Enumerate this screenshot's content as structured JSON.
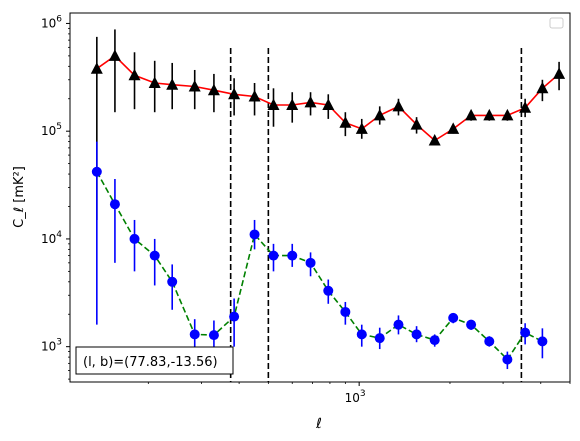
{
  "chart_data": {
    "type": "scatter",
    "title": "",
    "xlabel": "ℓ",
    "ylabel": "C_ℓ  [mK²]",
    "xscale": "log",
    "yscale": "log",
    "xlim": [
      110,
      5000
    ],
    "ylim": [
      470,
      1250000
    ],
    "x_tick_labels": [
      "10^3"
    ],
    "y_tick_labels": [
      "10^3",
      "10^4",
      "10^5",
      "10^6"
    ],
    "legend": "upper right (empty)",
    "annotation": "(l, b)=(77.83,-13.56)",
    "vlines": [
      375,
      500,
      3450
    ],
    "series": [
      {
        "marker": "triangle",
        "marker_color": "#000000",
        "line_color": "#ff0000",
        "line_style": "solid",
        "points": [
          {
            "x": 135,
            "y": 380000,
            "lo": 15000,
            "hi": 750000
          },
          {
            "x": 155,
            "y": 500000,
            "lo": 150000,
            "hi": 880000
          },
          {
            "x": 180,
            "y": 330000,
            "lo": 160000,
            "hi": 540000
          },
          {
            "x": 210,
            "y": 280000,
            "lo": 150000,
            "hi": 450000
          },
          {
            "x": 240,
            "y": 270000,
            "lo": 160000,
            "hi": 430000
          },
          {
            "x": 285,
            "y": 260000,
            "lo": 160000,
            "hi": 370000
          },
          {
            "x": 330,
            "y": 240000,
            "lo": 150000,
            "hi": 340000
          },
          {
            "x": 385,
            "y": 220000,
            "lo": 140000,
            "hi": 310000
          },
          {
            "x": 450,
            "y": 210000,
            "lo": 140000,
            "hi": 280000
          },
          {
            "x": 520,
            "y": 175000,
            "lo": 110000,
            "hi": 250000
          },
          {
            "x": 600,
            "y": 175000,
            "lo": 120000,
            "hi": 230000
          },
          {
            "x": 690,
            "y": 185000,
            "lo": 140000,
            "hi": 230000
          },
          {
            "x": 790,
            "y": 175000,
            "lo": 130000,
            "hi": 220000
          },
          {
            "x": 900,
            "y": 120000,
            "lo": 90000,
            "hi": 150000
          },
          {
            "x": 1020,
            "y": 105000,
            "lo": 85000,
            "hi": 130000
          },
          {
            "x": 1170,
            "y": 140000,
            "lo": 115000,
            "hi": 170000
          },
          {
            "x": 1350,
            "y": 170000,
            "lo": 140000,
            "hi": 200000
          },
          {
            "x": 1550,
            "y": 115000,
            "lo": 95000,
            "hi": 135000
          },
          {
            "x": 1780,
            "y": 82000,
            "lo": 75000,
            "hi": 90000
          },
          {
            "x": 2050,
            "y": 105000,
            "lo": 95000,
            "hi": 115000
          },
          {
            "x": 2350,
            "y": 140000,
            "lo": 125000,
            "hi": 155000
          },
          {
            "x": 2700,
            "y": 140000,
            "lo": 125000,
            "hi": 155000
          },
          {
            "x": 3100,
            "y": 140000,
            "lo": 125000,
            "hi": 155000
          },
          {
            "x": 3550,
            "y": 165000,
            "lo": 135000,
            "hi": 200000
          },
          {
            "x": 4050,
            "y": 250000,
            "lo": 190000,
            "hi": 300000
          },
          {
            "x": 4600,
            "y": 340000,
            "lo": 240000,
            "hi": 440000
          }
        ]
      },
      {
        "marker": "circle",
        "marker_color": "#0000ff",
        "line_color": "#008000",
        "line_style": "dashed",
        "points": [
          {
            "x": 135,
            "y": 42000,
            "lo": 1600,
            "hi": 80000
          },
          {
            "x": 155,
            "y": 21000,
            "lo": 6000,
            "hi": 36000
          },
          {
            "x": 180,
            "y": 10000,
            "lo": 5000,
            "hi": 15000
          },
          {
            "x": 210,
            "y": 7000,
            "lo": 3700,
            "hi": 10000
          },
          {
            "x": 240,
            "y": 4000,
            "lo": 2200,
            "hi": 5800
          },
          {
            "x": 285,
            "y": 1300,
            "lo": 780,
            "hi": 1800
          },
          {
            "x": 330,
            "y": 1280,
            "lo": 780,
            "hi": 1750
          },
          {
            "x": 385,
            "y": 1900,
            "lo": 1000,
            "hi": 2800
          },
          {
            "x": 450,
            "y": 11000,
            "lo": 8000,
            "hi": 15000
          },
          {
            "x": 520,
            "y": 7000,
            "lo": 5000,
            "hi": 9000
          },
          {
            "x": 600,
            "y": 7000,
            "lo": 5500,
            "hi": 9000
          },
          {
            "x": 690,
            "y": 6000,
            "lo": 4500,
            "hi": 7500
          },
          {
            "x": 790,
            "y": 3300,
            "lo": 2500,
            "hi": 4200
          },
          {
            "x": 900,
            "y": 2100,
            "lo": 1600,
            "hi": 2600
          },
          {
            "x": 1020,
            "y": 1300,
            "lo": 1000,
            "hi": 1600
          },
          {
            "x": 1170,
            "y": 1200,
            "lo": 950,
            "hi": 1500
          },
          {
            "x": 1350,
            "y": 1600,
            "lo": 1300,
            "hi": 1950
          },
          {
            "x": 1550,
            "y": 1300,
            "lo": 1100,
            "hi": 1550
          },
          {
            "x": 1780,
            "y": 1150,
            "lo": 1000,
            "hi": 1300
          },
          {
            "x": 2050,
            "y": 1850,
            "lo": 1650,
            "hi": 2050
          },
          {
            "x": 2350,
            "y": 1600,
            "lo": 1430,
            "hi": 1770
          },
          {
            "x": 2700,
            "y": 1120,
            "lo": 1000,
            "hi": 1250
          },
          {
            "x": 3100,
            "y": 760,
            "lo": 620,
            "hi": 900
          },
          {
            "x": 3550,
            "y": 1350,
            "lo": 1050,
            "hi": 1650
          },
          {
            "x": 4050,
            "y": 1120,
            "lo": 780,
            "hi": 1480
          }
        ]
      }
    ]
  }
}
